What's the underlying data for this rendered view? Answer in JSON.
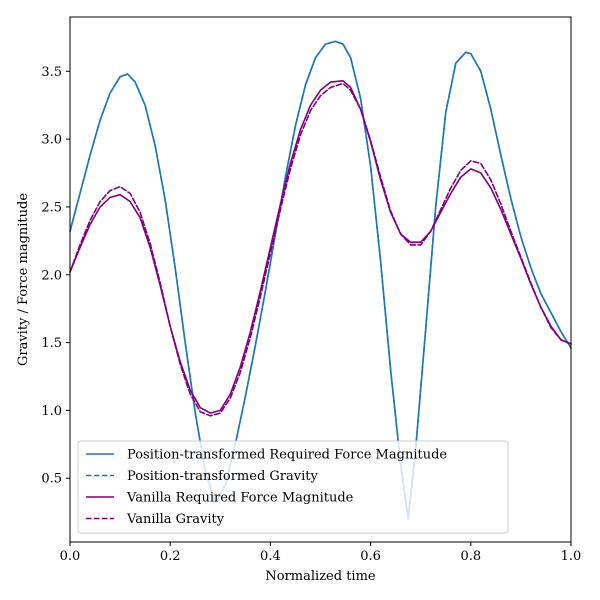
{
  "chart_data": {
    "type": "line",
    "title": "",
    "xlabel": "Normalized time",
    "ylabel": "Gravity / Force magnitude",
    "xlim": [
      0.0,
      1.0
    ],
    "ylim": [
      0.03,
      3.9
    ],
    "xticks": [
      0.0,
      0.2,
      0.4,
      0.6,
      0.8,
      1.0
    ],
    "xtick_labels": [
      "0.0",
      "0.2",
      "0.4",
      "0.6",
      "0.8",
      "1.0"
    ],
    "yticks": [
      0.5,
      1.0,
      1.5,
      2.0,
      2.5,
      3.0,
      3.5
    ],
    "ytick_labels": [
      "0.5",
      "1.0",
      "1.5",
      "2.0",
      "2.5",
      "3.0",
      "3.5"
    ],
    "grid": false,
    "legend_position": "lower-left",
    "series": [
      {
        "name": "Position-transformed Required Force Magnitude",
        "color": "#1f77b4",
        "style": "solid",
        "x": [
          0.0,
          0.02,
          0.04,
          0.06,
          0.08,
          0.1,
          0.115,
          0.13,
          0.15,
          0.17,
          0.19,
          0.21,
          0.23,
          0.25,
          0.27,
          0.29,
          0.31,
          0.33,
          0.35,
          0.37,
          0.39,
          0.41,
          0.43,
          0.45,
          0.47,
          0.49,
          0.51,
          0.53,
          0.545,
          0.56,
          0.58,
          0.6,
          0.62,
          0.64,
          0.66,
          0.675,
          0.69,
          0.71,
          0.73,
          0.75,
          0.77,
          0.79,
          0.8,
          0.82,
          0.84,
          0.86,
          0.88,
          0.9,
          0.92,
          0.94,
          0.96,
          0.98,
          1.0
        ],
        "y": [
          2.32,
          2.6,
          2.88,
          3.14,
          3.34,
          3.46,
          3.48,
          3.42,
          3.25,
          2.95,
          2.55,
          2.05,
          1.5,
          0.98,
          0.55,
          0.32,
          0.45,
          0.75,
          1.1,
          1.48,
          1.88,
          2.3,
          2.72,
          3.1,
          3.4,
          3.6,
          3.7,
          3.72,
          3.7,
          3.6,
          3.3,
          2.8,
          2.1,
          1.3,
          0.6,
          0.2,
          0.72,
          1.6,
          2.5,
          3.2,
          3.56,
          3.64,
          3.63,
          3.5,
          3.22,
          2.88,
          2.56,
          2.28,
          2.05,
          1.86,
          1.72,
          1.58,
          1.46
        ]
      },
      {
        "name": "Position-transformed Gravity",
        "color": "#1f77b4",
        "style": "dashed",
        "x": [
          0.0,
          0.02,
          0.04,
          0.06,
          0.08,
          0.1,
          0.115,
          0.13,
          0.15,
          0.17,
          0.19,
          0.21,
          0.23,
          0.25,
          0.27,
          0.29,
          0.31,
          0.33,
          0.35,
          0.37,
          0.39,
          0.41,
          0.43,
          0.45,
          0.47,
          0.49,
          0.51,
          0.53,
          0.545,
          0.56,
          0.58,
          0.6,
          0.62,
          0.64,
          0.66,
          0.675,
          0.69,
          0.71,
          0.73,
          0.75,
          0.77,
          0.79,
          0.8,
          0.82,
          0.84,
          0.86,
          0.88,
          0.9,
          0.92,
          0.94,
          0.96,
          0.98,
          1.0
        ],
        "y": [
          2.32,
          2.6,
          2.88,
          3.14,
          3.34,
          3.46,
          3.48,
          3.42,
          3.25,
          2.95,
          2.55,
          2.05,
          1.5,
          0.98,
          0.55,
          0.32,
          0.45,
          0.75,
          1.1,
          1.48,
          1.88,
          2.3,
          2.72,
          3.1,
          3.4,
          3.6,
          3.7,
          3.72,
          3.7,
          3.6,
          3.3,
          2.8,
          2.1,
          1.3,
          0.6,
          0.2,
          0.72,
          1.6,
          2.5,
          3.2,
          3.56,
          3.64,
          3.63,
          3.5,
          3.22,
          2.88,
          2.56,
          2.28,
          2.05,
          1.86,
          1.72,
          1.58,
          1.46
        ]
      },
      {
        "name": "Vanilla Required Force Magnitude",
        "color": "#800080",
        "style": "solid",
        "x": [
          0.0,
          0.02,
          0.04,
          0.06,
          0.08,
          0.1,
          0.12,
          0.14,
          0.16,
          0.18,
          0.2,
          0.22,
          0.24,
          0.26,
          0.28,
          0.3,
          0.32,
          0.34,
          0.36,
          0.38,
          0.4,
          0.42,
          0.44,
          0.46,
          0.48,
          0.5,
          0.52,
          0.545,
          0.56,
          0.58,
          0.6,
          0.62,
          0.64,
          0.66,
          0.68,
          0.7,
          0.72,
          0.74,
          0.76,
          0.78,
          0.8,
          0.82,
          0.84,
          0.86,
          0.88,
          0.9,
          0.92,
          0.94,
          0.96,
          0.98,
          1.0
        ],
        "y": [
          2.02,
          2.2,
          2.37,
          2.5,
          2.57,
          2.59,
          2.54,
          2.42,
          2.2,
          1.92,
          1.62,
          1.36,
          1.15,
          1.02,
          0.98,
          1.0,
          1.12,
          1.32,
          1.58,
          1.88,
          2.2,
          2.52,
          2.82,
          3.07,
          3.25,
          3.36,
          3.42,
          3.43,
          3.38,
          3.22,
          2.98,
          2.7,
          2.46,
          2.3,
          2.24,
          2.24,
          2.32,
          2.46,
          2.6,
          2.72,
          2.78,
          2.75,
          2.64,
          2.48,
          2.3,
          2.12,
          1.93,
          1.76,
          1.62,
          1.52,
          1.49
        ]
      },
      {
        "name": "Vanilla Gravity",
        "color": "#800080",
        "style": "dashed",
        "x": [
          0.0,
          0.02,
          0.04,
          0.06,
          0.08,
          0.1,
          0.12,
          0.14,
          0.16,
          0.18,
          0.2,
          0.22,
          0.24,
          0.26,
          0.28,
          0.3,
          0.32,
          0.34,
          0.36,
          0.38,
          0.4,
          0.42,
          0.44,
          0.46,
          0.48,
          0.5,
          0.52,
          0.545,
          0.56,
          0.58,
          0.6,
          0.62,
          0.64,
          0.66,
          0.68,
          0.7,
          0.72,
          0.74,
          0.76,
          0.78,
          0.8,
          0.82,
          0.84,
          0.86,
          0.88,
          0.9,
          0.92,
          0.94,
          0.96,
          0.98,
          1.0
        ],
        "y": [
          2.02,
          2.22,
          2.4,
          2.54,
          2.62,
          2.65,
          2.6,
          2.46,
          2.23,
          1.94,
          1.62,
          1.34,
          1.12,
          0.99,
          0.96,
          0.98,
          1.09,
          1.28,
          1.54,
          1.84,
          2.16,
          2.48,
          2.78,
          3.03,
          3.21,
          3.32,
          3.38,
          3.41,
          3.36,
          3.22,
          2.99,
          2.72,
          2.47,
          2.3,
          2.22,
          2.22,
          2.32,
          2.48,
          2.64,
          2.77,
          2.84,
          2.82,
          2.7,
          2.52,
          2.32,
          2.13,
          1.94,
          1.76,
          1.61,
          1.52,
          1.49
        ]
      }
    ]
  }
}
